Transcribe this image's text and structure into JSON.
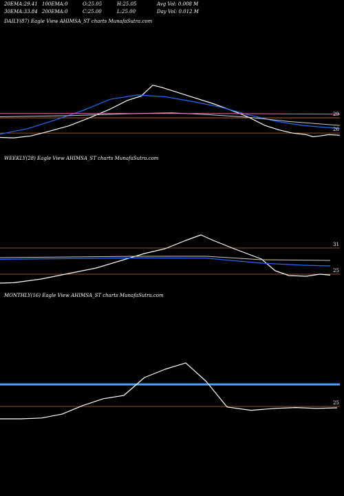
{
  "header": {
    "row1": [
      {
        "label": "20EMA:",
        "value": "29.41"
      },
      {
        "label": "100EMA:",
        "value": "0"
      },
      {
        "label": "O:",
        "value": "25.05"
      },
      {
        "label": "H:",
        "value": "25.05"
      },
      {
        "label": "Avg Vol:",
        "value": "0.008 M"
      }
    ],
    "row2": [
      {
        "label": "30EMA:",
        "value": "33.84"
      },
      {
        "label": "200EMA:",
        "value": "0"
      },
      {
        "label": "C:",
        "value": "25.00"
      },
      {
        "label": "L:",
        "value": "25.00"
      },
      {
        "label": "Day Vol:",
        "value": "0.012 M"
      }
    ]
  },
  "colors": {
    "price": "#ffffff",
    "ema_blue": "#1e6fff",
    "ema_light": "#cfcfcf",
    "ema_pink": "#ff69b4",
    "level_orange": "#c06a30",
    "monthly_band": "#4aa3ff"
  },
  "chart_data": [
    {
      "id": "daily",
      "type": "line",
      "title": "DAILY(87) Eagle  View  AHIMSA_ST charts MunafaSutra.com",
      "ylim": [
        18,
        75
      ],
      "right_labels": [
        "29",
        "26"
      ],
      "levels": [
        {
          "y": 33.5,
          "color": "level_orange"
        },
        {
          "y": 26.5,
          "color": "level_orange"
        }
      ],
      "series": [
        {
          "key": "price",
          "color": "price",
          "width": 1.2,
          "points": [
            [
              0,
              24.5
            ],
            [
              20,
              24.3
            ],
            [
              45,
              25.2
            ],
            [
              70,
              27.2
            ],
            [
              100,
              29.8
            ],
            [
              130,
              33.5
            ],
            [
              160,
              37.5
            ],
            [
              185,
              41.5
            ],
            [
              205,
              43.5
            ],
            [
              222,
              48.5
            ],
            [
              235,
              47.5
            ],
            [
              255,
              45.5
            ],
            [
              280,
              43.0
            ],
            [
              310,
              40.0
            ],
            [
              340,
              36.5
            ],
            [
              360,
              34.0
            ],
            [
              385,
              30.0
            ],
            [
              405,
              28.0
            ],
            [
              425,
              26.5
            ],
            [
              445,
              25.8
            ],
            [
              455,
              24.8
            ],
            [
              465,
              25.2
            ],
            [
              478,
              25.8
            ],
            [
              494,
              25.5
            ]
          ]
        },
        {
          "key": "ema_blue",
          "color": "ema_blue",
          "width": 1.2,
          "points": [
            [
              0,
              26.0
            ],
            [
              40,
              28.5
            ],
            [
              80,
              32.5
            ],
            [
              120,
              36.8
            ],
            [
              160,
              42.0
            ],
            [
              200,
              44.0
            ],
            [
              240,
              43.2
            ],
            [
              280,
              41.0
            ],
            [
              320,
              38.5
            ],
            [
              360,
              35.0
            ],
            [
              400,
              32.0
            ],
            [
              440,
              30.0
            ],
            [
              470,
              29.2
            ],
            [
              494,
              28.6
            ]
          ]
        },
        {
          "key": "ema_light",
          "color": "ema_light",
          "width": 1,
          "points": [
            [
              0,
              34.0
            ],
            [
              100,
              34.5
            ],
            [
              200,
              35.5
            ],
            [
              250,
              35.8
            ],
            [
              300,
              35.0
            ],
            [
              360,
              33.8
            ],
            [
              420,
              31.8
            ],
            [
              470,
              30.6
            ],
            [
              494,
              30.0
            ]
          ]
        },
        {
          "key": "ema_pink",
          "color": "ema_pink",
          "width": 1,
          "points": [
            [
              0,
              35.5
            ],
            [
              300,
              35.5
            ],
            [
              420,
              35.3
            ],
            [
              494,
              35.2
            ]
          ]
        }
      ]
    },
    {
      "id": "weekly",
      "type": "line",
      "title": "WEEKLY(28) Eagle  View  AHIMSA_ST charts MunafaSutra.com",
      "ylim": [
        10,
        100
      ],
      "right_labels": [
        "31",
        "25"
      ],
      "levels": [
        {
          "y": 40.0,
          "color": "level_orange"
        },
        {
          "y": 21.0,
          "color": "level_orange"
        }
      ],
      "series": [
        {
          "key": "price",
          "color": "price",
          "width": 1.2,
          "points": [
            [
              0,
              14.5
            ],
            [
              20,
              14.8
            ],
            [
              60,
              17.5
            ],
            [
              100,
              21.5
            ],
            [
              140,
              25.5
            ],
            [
              180,
              31.5
            ],
            [
              210,
              36.0
            ],
            [
              240,
              39.5
            ],
            [
              270,
              45.5
            ],
            [
              292,
              49.5
            ],
            [
              310,
              45.5
            ],
            [
              340,
              39.5
            ],
            [
              380,
              32.0
            ],
            [
              400,
              23.5
            ],
            [
              420,
              20.0
            ],
            [
              445,
              19.5
            ],
            [
              465,
              21.0
            ],
            [
              480,
              20.3
            ]
          ]
        },
        {
          "key": "ema_light",
          "color": "ema_light",
          "width": 1,
          "points": [
            [
              0,
              33.0
            ],
            [
              200,
              34.0
            ],
            [
              300,
              34.0
            ],
            [
              380,
              31.5
            ],
            [
              480,
              31.0
            ]
          ]
        },
        {
          "key": "ema_blue",
          "color": "ema_blue",
          "width": 1.2,
          "points": [
            [
              0,
              31.8
            ],
            [
              200,
              32.8
            ],
            [
              300,
              32.6
            ],
            [
              380,
              29.0
            ],
            [
              440,
              27.5
            ],
            [
              480,
              27.0
            ]
          ]
        }
      ]
    },
    {
      "id": "monthly",
      "type": "line",
      "title": "MONTHLY(16) Eagle  View  AHIMSA_ST charts MunafaSutra.com",
      "ylim": [
        10,
        60
      ],
      "right_labels": [
        "25"
      ],
      "levels": [
        {
          "y": 22.0,
          "color": "level_orange"
        }
      ],
      "bands": [
        {
          "y": 30.0,
          "color": "monthly_band",
          "width": 3
        }
      ],
      "series": [
        {
          "key": "price",
          "color": "price",
          "width": 1.2,
          "points": [
            [
              0,
              17.5
            ],
            [
              30,
              17.5
            ],
            [
              60,
              17.8
            ],
            [
              90,
              19.2
            ],
            [
              120,
              22.3
            ],
            [
              150,
              24.8
            ],
            [
              180,
              26.0
            ],
            [
              210,
              32.5
            ],
            [
              240,
              35.5
            ],
            [
              270,
              37.8
            ],
            [
              300,
              31.0
            ],
            [
              330,
              21.8
            ],
            [
              365,
              20.6
            ],
            [
              400,
              21.3
            ],
            [
              430,
              21.6
            ],
            [
              460,
              21.3
            ],
            [
              490,
              21.5
            ]
          ]
        }
      ]
    }
  ]
}
